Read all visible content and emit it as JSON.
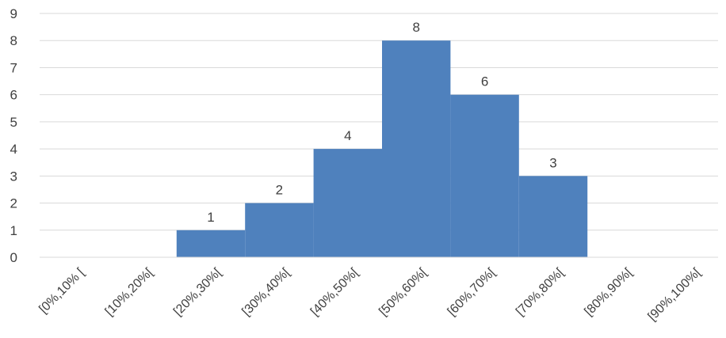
{
  "chart_data": {
    "type": "bar",
    "categories": [
      "[0%,10% [",
      "[10%,20%[",
      "[20%,30%[",
      "[30%,40%[",
      "[40%,50%[",
      "[50%,60%[",
      "[60%,70%[",
      "[70%,80%[",
      "[80%,90%[",
      "[90%,100%["
    ],
    "values": [
      0,
      0,
      1,
      2,
      4,
      8,
      6,
      3,
      0,
      0
    ],
    "data_labels": [
      "",
      "",
      "1",
      "2",
      "4",
      "8",
      "6",
      "3",
      "",
      ""
    ],
    "title": "",
    "xlabel": "",
    "ylabel": "",
    "ylim": [
      0,
      9
    ],
    "yticks": [
      0,
      1,
      2,
      3,
      4,
      5,
      6,
      7,
      8,
      9
    ],
    "grid": true,
    "legend": "none",
    "bar_color": "#4f81bd",
    "gap": 0
  }
}
